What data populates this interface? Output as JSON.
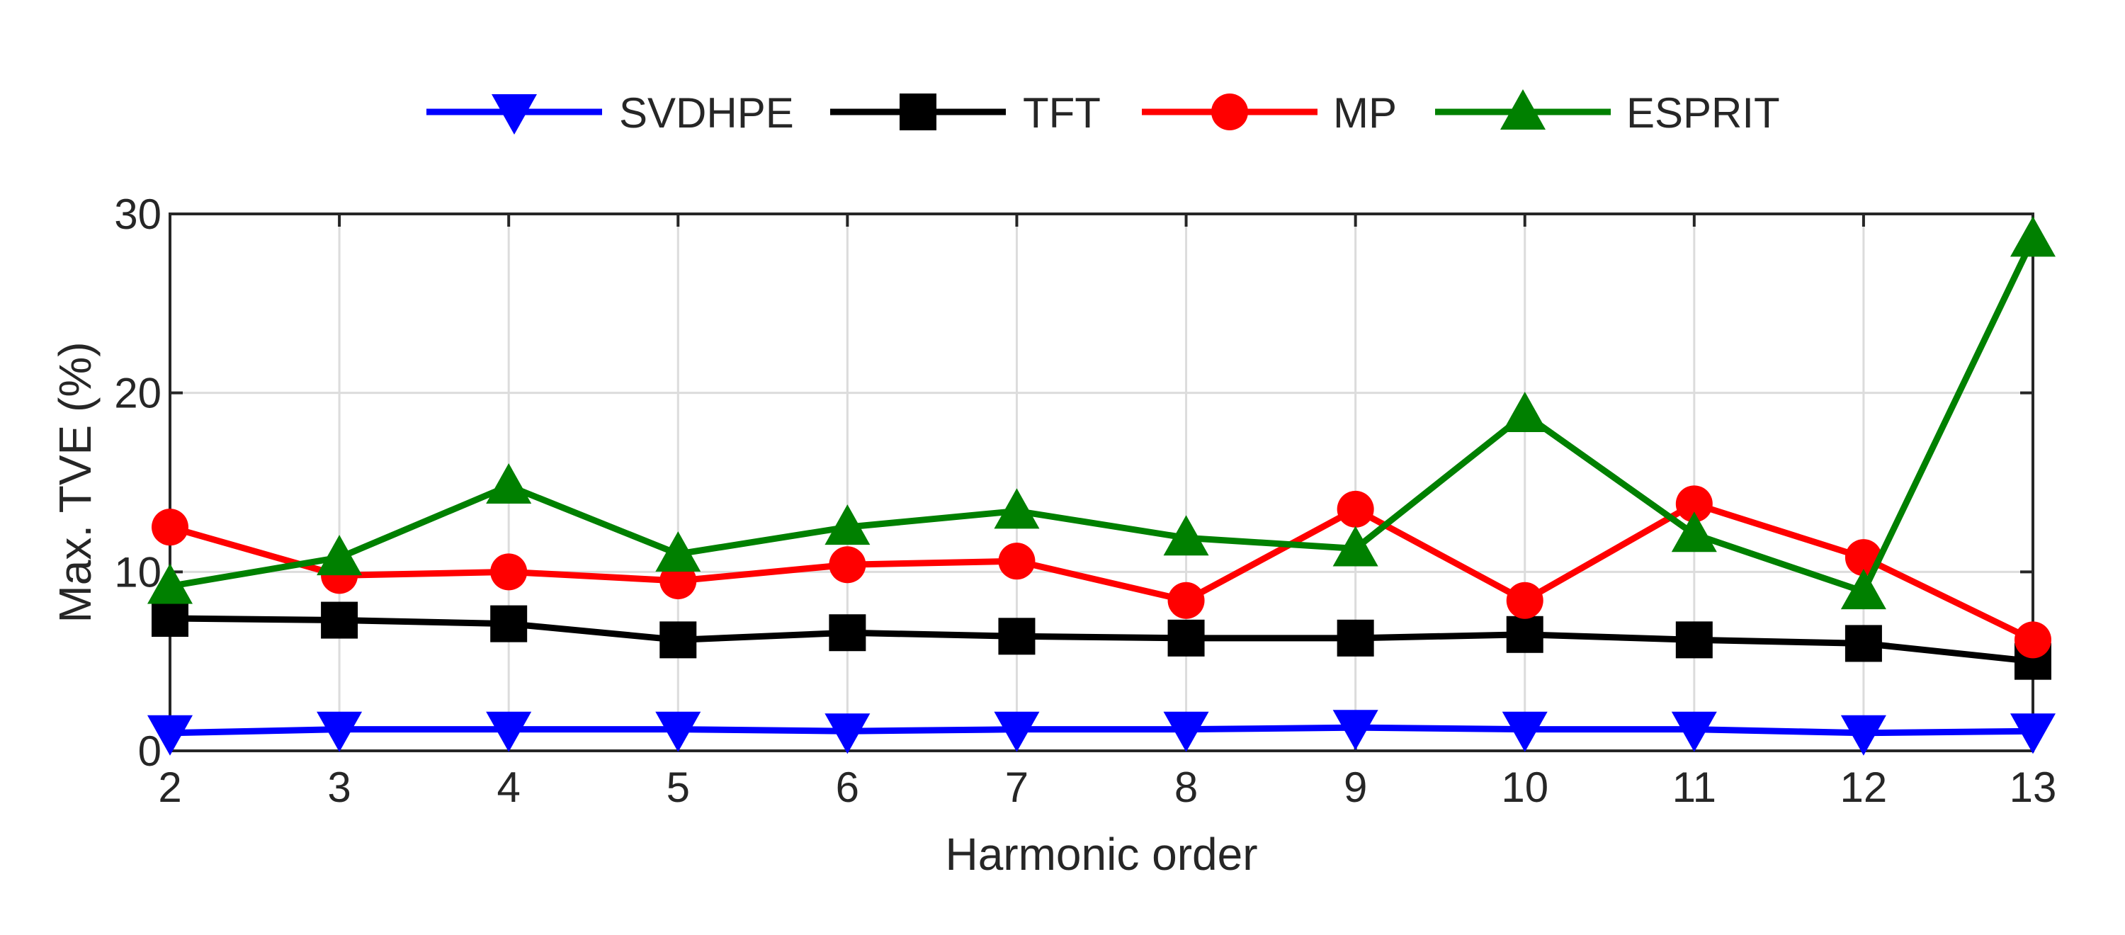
{
  "chart_data": {
    "type": "line",
    "xlabel": "Harmonic order",
    "ylabel": "Max. TVE (%)",
    "x": [
      2,
      3,
      4,
      5,
      6,
      7,
      8,
      9,
      10,
      11,
      12,
      13
    ],
    "xlim": [
      2,
      13
    ],
    "ylim": [
      0,
      30
    ],
    "xticks": [
      2,
      3,
      4,
      5,
      6,
      7,
      8,
      9,
      10,
      11,
      12,
      13
    ],
    "yticks": [
      0,
      10,
      20,
      30
    ],
    "grid": true,
    "legend_position": "top-center, outside plot area, horizontal",
    "series": [
      {
        "name": "SVDHPE",
        "color": "#0000ff",
        "marker": "triangle-down",
        "values": [
          1.0,
          1.2,
          1.2,
          1.2,
          1.1,
          1.2,
          1.2,
          1.3,
          1.2,
          1.2,
          1.0,
          1.1
        ]
      },
      {
        "name": "TFT",
        "color": "#000000",
        "marker": "square",
        "values": [
          7.4,
          7.3,
          7.1,
          6.2,
          6.6,
          6.4,
          6.3,
          6.3,
          6.5,
          6.2,
          6.0,
          5.0
        ]
      },
      {
        "name": "MP",
        "color": "#ff0000",
        "marker": "circle",
        "values": [
          12.5,
          9.8,
          10.0,
          9.5,
          10.4,
          10.6,
          8.4,
          13.5,
          8.4,
          13.8,
          10.8,
          6.2
        ]
      },
      {
        "name": "ESPRIT",
        "color": "#008000",
        "marker": "triangle-up",
        "values": [
          9.2,
          10.8,
          14.8,
          11.0,
          12.5,
          13.4,
          11.9,
          11.3,
          18.8,
          12.1,
          8.9,
          28.6
        ]
      }
    ]
  }
}
